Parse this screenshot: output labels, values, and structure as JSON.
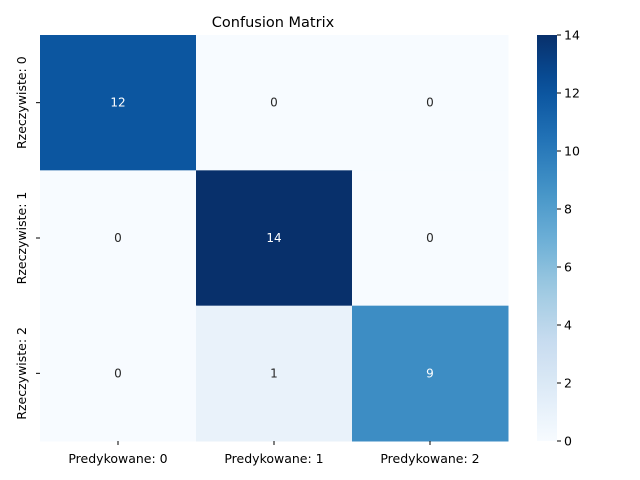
{
  "chart_data": {
    "type": "heatmap",
    "title": "Confusion Matrix",
    "xlabel": "",
    "ylabel": "",
    "x_categories": [
      "Predykowane: 0",
      "Predykowane: 1",
      "Predykowane: 2"
    ],
    "y_categories": [
      "Rzeczywiste: 0",
      "Rzeczywiste: 1",
      "Rzeczywiste: 2"
    ],
    "values": [
      [
        12,
        0,
        0
      ],
      [
        0,
        14,
        0
      ],
      [
        0,
        1,
        9
      ]
    ],
    "colormap": "Blues",
    "colorbar": {
      "min": 0,
      "max": 14,
      "ticks": [
        0,
        2,
        4,
        6,
        8,
        10,
        12,
        14
      ]
    },
    "annotations": true
  }
}
